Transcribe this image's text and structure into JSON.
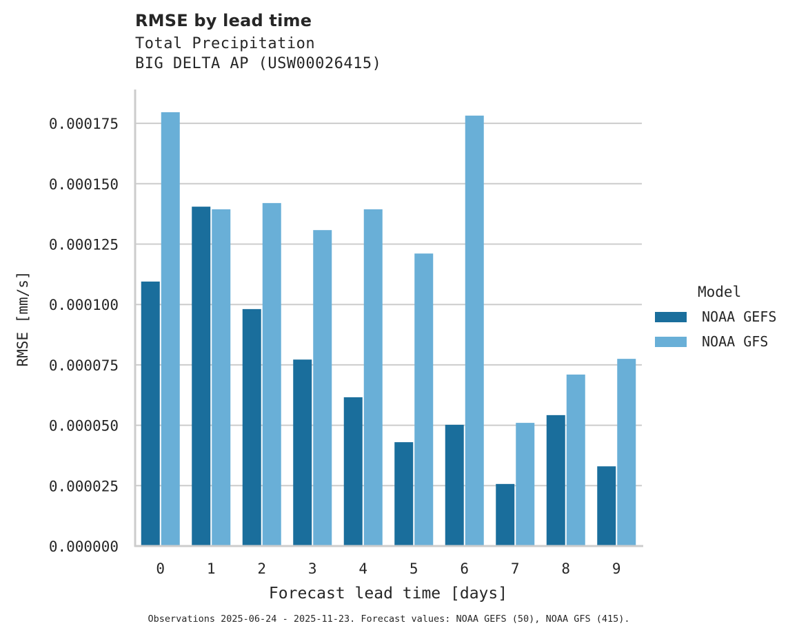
{
  "chart_data": {
    "type": "bar",
    "title": "RMSE by lead time",
    "subtitle_lines": [
      "Total Precipitation",
      "BIG DELTA AP (USW00026415)"
    ],
    "xlabel": "Forecast lead time [days]",
    "ylabel": "RMSE [mm/s]",
    "categories": [
      "0",
      "1",
      "2",
      "3",
      "4",
      "5",
      "6",
      "7",
      "8",
      "9"
    ],
    "series": [
      {
        "name": "NOAA GEFS",
        "color": "#1a6e9c",
        "values": [
          0.0001095,
          0.0001405,
          9.81e-05,
          7.72e-05,
          6.16e-05,
          4.3e-05,
          5.02e-05,
          2.57e-05,
          5.42e-05,
          3.3e-05
        ]
      },
      {
        "name": "NOAA GFS",
        "color": "#69afd7",
        "values": [
          0.0001796,
          0.0001394,
          0.000142,
          0.0001308,
          0.0001394,
          0.0001211,
          0.0001782,
          5.1e-05,
          7.1e-05,
          7.75e-05
        ]
      }
    ],
    "yticks": [
      0.0,
      2.5e-05,
      5e-05,
      7.5e-05,
      0.0001,
      0.000125,
      0.00015,
      0.000175
    ],
    "ytick_labels": [
      "0.000000",
      "0.000025",
      "0.000050",
      "0.000075",
      "0.000100",
      "0.000125",
      "0.000150",
      "0.000175"
    ],
    "ylim": [
      0,
      0.000189
    ],
    "grid": "horizontal",
    "legend": {
      "title": "Model",
      "position": "right"
    },
    "footnote": "Observations 2025-06-24 - 2025-11-23. Forecast values: NOAA GEFS (50), NOAA GFS (415)."
  }
}
